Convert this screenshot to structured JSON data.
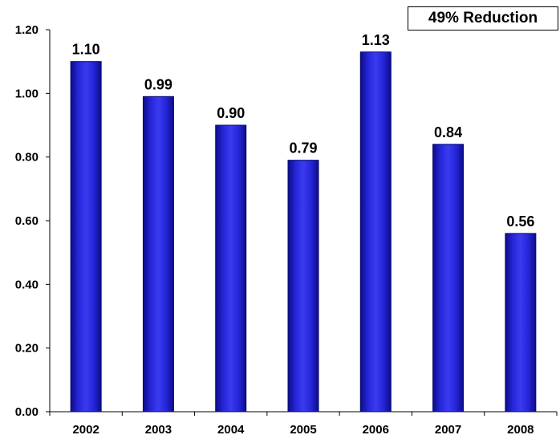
{
  "chart_data": {
    "type": "bar",
    "categories": [
      "2002",
      "2003",
      "2004",
      "2005",
      "2006",
      "2007",
      "2008"
    ],
    "values": [
      1.1,
      0.99,
      0.9,
      0.79,
      1.13,
      0.84,
      0.56
    ],
    "data_labels": [
      "1.10",
      "0.99",
      "0.90",
      "0.79",
      "1.13",
      "0.84",
      "0.56"
    ],
    "ylim": [
      0,
      1.2
    ],
    "yticks": [
      "0.00",
      "0.20",
      "0.40",
      "0.60",
      "0.80",
      "1.00",
      "1.20"
    ],
    "ytick_values": [
      0,
      0.2,
      0.4,
      0.6,
      0.8,
      1.0,
      1.2
    ],
    "annotation": "49% Reduction",
    "bar_color": "#1f1fd0",
    "grid": false,
    "legend": "none"
  }
}
